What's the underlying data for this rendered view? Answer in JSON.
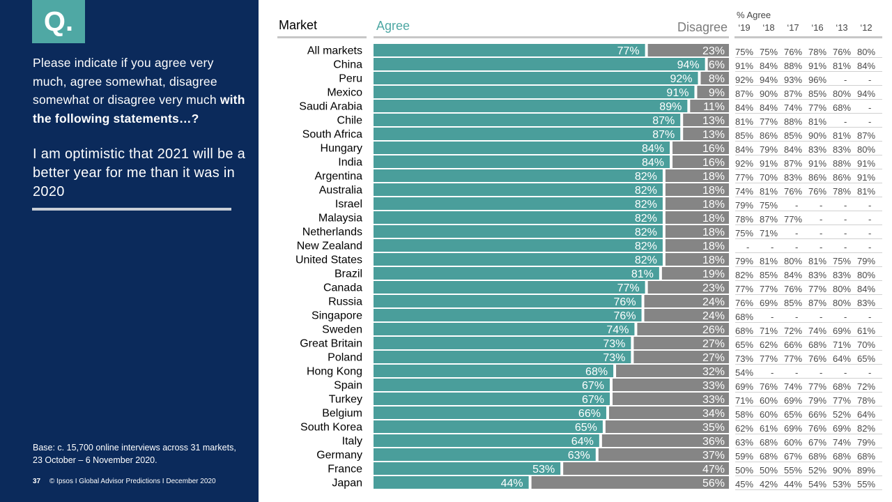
{
  "panel": {
    "badge": "Q.",
    "question_part1": "Please indicate if you agree very much, agree somewhat, disagree somewhat or disagree very much ",
    "question_part2": "with the following statements…?",
    "statement": "I am optimistic that 2021 will be a better year for me than it was in 2020",
    "base": "Base: c. 15,700 online interviews across 31 markets,  23 October – 6 November 2020.",
    "page_number": "37",
    "footer_text": "© Ipsos I Global Advisor Predictions I December 2020"
  },
  "header": {
    "market": "Market",
    "agree": "Agree",
    "disagree": "Disagree",
    "pct_agree": "% Agree",
    "years": [
      "‘19",
      "‘18",
      "‘17",
      "‘16",
      "‘13",
      "‘12"
    ]
  },
  "colors": {
    "agree": "#4a9e9b",
    "disagree": "#858585",
    "panel": "#0b2a5b",
    "badge": "#4fa8a4"
  },
  "chart_data": {
    "type": "bar",
    "orientation": "horizontal-stacked-100",
    "categories": [
      "All markets",
      "China",
      "Peru",
      "Mexico",
      "Saudi Arabia",
      "Chile",
      "South Africa",
      "Hungary",
      "India",
      "Argentina",
      "Australia",
      "Israel",
      "Malaysia",
      "Netherlands",
      "New Zealand",
      "United States",
      "Brazil",
      "Canada",
      "Russia",
      "Singapore",
      "Sweden",
      "Great Britain",
      "Poland",
      "Hong Kong",
      "Spain",
      "Turkey",
      "Belgium",
      "South Korea",
      "Italy",
      "Germany",
      "France",
      "Japan"
    ],
    "series": [
      {
        "name": "Agree",
        "values": [
          77,
          94,
          92,
          91,
          89,
          87,
          87,
          84,
          84,
          82,
          82,
          82,
          82,
          82,
          82,
          82,
          81,
          77,
          76,
          76,
          74,
          73,
          73,
          68,
          67,
          67,
          66,
          65,
          64,
          63,
          53,
          44
        ]
      },
      {
        "name": "Disagree",
        "values": [
          23,
          6,
          8,
          9,
          11,
          13,
          13,
          16,
          16,
          18,
          18,
          18,
          18,
          18,
          18,
          18,
          19,
          23,
          24,
          24,
          26,
          27,
          27,
          32,
          33,
          33,
          34,
          35,
          36,
          37,
          47,
          56
        ]
      }
    ],
    "value_labels": {
      "agree": [
        "77%",
        "94%",
        "92%",
        "91%",
        "89%",
        "87%",
        "87%",
        "84%",
        "84%",
        "82%",
        "82%",
        "82%",
        "82%",
        "82%",
        "82%",
        "82%",
        "81%",
        "77%",
        "76%",
        "76%",
        "74%",
        "73%",
        "73%",
        "68%",
        "67%",
        "67%",
        "66%",
        "65%",
        "64%",
        "63%",
        "53%",
        "44%"
      ],
      "disagree": [
        "23%",
        "6%",
        "8%",
        "9%",
        "11%",
        "13%",
        "13%",
        "16%",
        "16%",
        "18%",
        "18%",
        "18%",
        "18%",
        "18%",
        "18%",
        "18%",
        "19%",
        "23%",
        "24%",
        "24%",
        "26%",
        "27%",
        "27%",
        "32%",
        "33%",
        "33%",
        "34%",
        "35%",
        "36%",
        "37%",
        "47%",
        "56%"
      ]
    },
    "trend_years": [
      "‘19",
      "‘18",
      "‘17",
      "‘16",
      "‘13",
      "‘12"
    ],
    "trend": [
      [
        "75%",
        "75%",
        "76%",
        "78%",
        "76%",
        "80%"
      ],
      [
        "91%",
        "84%",
        "88%",
        "91%",
        "81%",
        "84%"
      ],
      [
        "92%",
        "94%",
        "93%",
        "96%",
        "-",
        "-"
      ],
      [
        "87%",
        "90%",
        "87%",
        "85%",
        "80%",
        "94%"
      ],
      [
        "84%",
        "84%",
        "74%",
        "77%",
        "68%",
        "-"
      ],
      [
        "81%",
        "77%",
        "88%",
        "81%",
        "-",
        "-"
      ],
      [
        "85%",
        "86%",
        "85%",
        "90%",
        "81%",
        "87%"
      ],
      [
        "84%",
        "79%",
        "84%",
        "83%",
        "83%",
        "80%"
      ],
      [
        "92%",
        "91%",
        "87%",
        "91%",
        "88%",
        "91%"
      ],
      [
        "77%",
        "70%",
        "83%",
        "86%",
        "86%",
        "91%"
      ],
      [
        "74%",
        "81%",
        "76%",
        "76%",
        "78%",
        "81%"
      ],
      [
        "79%",
        "75%",
        "-",
        "-",
        "-",
        "-"
      ],
      [
        "78%",
        "87%",
        "77%",
        "-",
        "-",
        "-"
      ],
      [
        "75%",
        "71%",
        "-",
        "-",
        "-",
        "-"
      ],
      [
        "-",
        "-",
        "-",
        "-",
        "-",
        "-"
      ],
      [
        "79%",
        "81%",
        "80%",
        "81%",
        "75%",
        "79%"
      ],
      [
        "82%",
        "85%",
        "84%",
        "83%",
        "83%",
        "80%"
      ],
      [
        "77%",
        "77%",
        "76%",
        "77%",
        "80%",
        "84%"
      ],
      [
        "76%",
        "69%",
        "85%",
        "87%",
        "80%",
        "83%"
      ],
      [
        "68%",
        "-",
        "-",
        "-",
        "-",
        "-"
      ],
      [
        "68%",
        "71%",
        "72%",
        "74%",
        "69%",
        "61%"
      ],
      [
        "65%",
        "62%",
        "66%",
        "68%",
        "71%",
        "70%"
      ],
      [
        "73%",
        "77%",
        "77%",
        "76%",
        "64%",
        "65%"
      ],
      [
        "54%",
        "-",
        "-",
        "-",
        "-",
        "-"
      ],
      [
        "69%",
        "76%",
        "74%",
        "77%",
        "68%",
        "72%"
      ],
      [
        "71%",
        "60%",
        "69%",
        "79%",
        "77%",
        "78%"
      ],
      [
        "58%",
        "60%",
        "65%",
        "66%",
        "52%",
        "64%"
      ],
      [
        "62%",
        "61%",
        "69%",
        "76%",
        "69%",
        "82%"
      ],
      [
        "63%",
        "68%",
        "60%",
        "67%",
        "74%",
        "79%"
      ],
      [
        "59%",
        "68%",
        "67%",
        "68%",
        "68%",
        "68%"
      ],
      [
        "50%",
        "50%",
        "55%",
        "52%",
        "90%",
        "89%"
      ],
      [
        "45%",
        "42%",
        "44%",
        "54%",
        "53%",
        "55%"
      ]
    ],
    "xlim": [
      0,
      100
    ]
  }
}
